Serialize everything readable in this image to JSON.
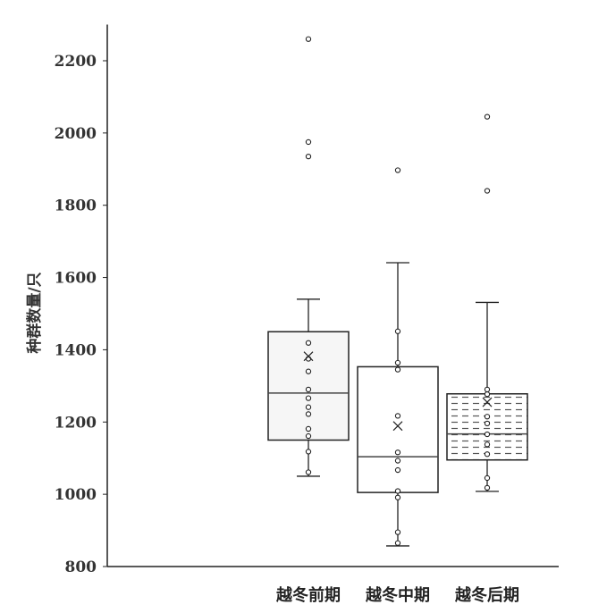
{
  "chart_data": {
    "type": "box",
    "title": "",
    "xlabel": "",
    "ylabel": "种群数量/只",
    "ylim": [
      800,
      2300
    ],
    "yticks": [
      800,
      1000,
      1200,
      1400,
      1600,
      1800,
      2000,
      2200
    ],
    "grid": false,
    "categories": [
      "越冬前期",
      "越冬中期",
      "越冬后期"
    ],
    "boxes": [
      {
        "category": "越冬前期",
        "whisker_low": 1050,
        "q1": 1150,
        "median": 1280,
        "q3": 1450,
        "whisker_high": 1540,
        "mean": 1382,
        "points": [
          1419,
          1375,
          1340,
          1290,
          1266,
          1241,
          1222,
          1181,
          1161,
          1118,
          1061
        ],
        "outliers": [
          2260,
          1975,
          1935
        ],
        "fill": "light-gray",
        "color": "#f6f6f6"
      },
      {
        "category": "越冬中期",
        "whisker_low": 857,
        "q1": 1005,
        "median": 1104,
        "q3": 1353,
        "whisker_high": 1641,
        "mean": 1189,
        "points": [
          1451,
          1364,
          1345,
          1217,
          1116,
          1093,
          1067,
          1009,
          991,
          895,
          865
        ],
        "outliers": [
          1897
        ],
        "fill": "white",
        "color": "#ffffff"
      },
      {
        "category": "越冬后期",
        "whisker_low": 1008,
        "q1": 1095,
        "median": 1167,
        "q3": 1278,
        "whisker_high": 1531,
        "mean": 1255,
        "points": [
          1290,
          1277,
          1215,
          1196,
          1166,
          1138,
          1111,
          1045,
          1018
        ],
        "outliers": [
          2045,
          1840
        ],
        "fill": "horizontal-dashes",
        "color": "#ffffff"
      }
    ]
  }
}
